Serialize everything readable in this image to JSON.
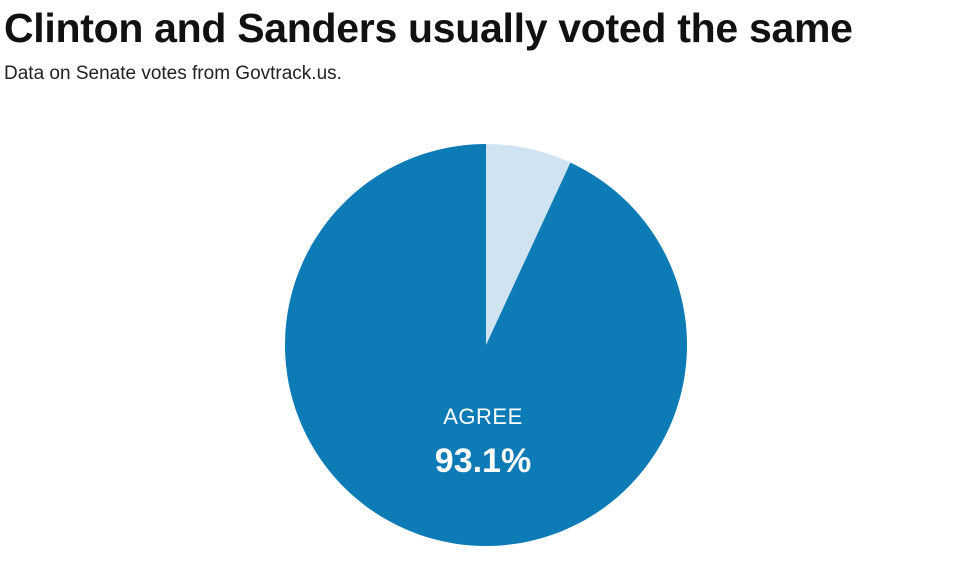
{
  "chart_data": {
    "type": "pie",
    "title": "Clinton and Sanders usually voted the same",
    "subtitle": "Data on Senate votes from Govtrack.us.",
    "slices": [
      {
        "label": "AGREE",
        "value": 93.1,
        "value_label": "93.1%",
        "color": "#0c7bb6"
      },
      {
        "label": "",
        "value": 6.9,
        "color": "#cfe3f0"
      }
    ],
    "legend": false
  }
}
